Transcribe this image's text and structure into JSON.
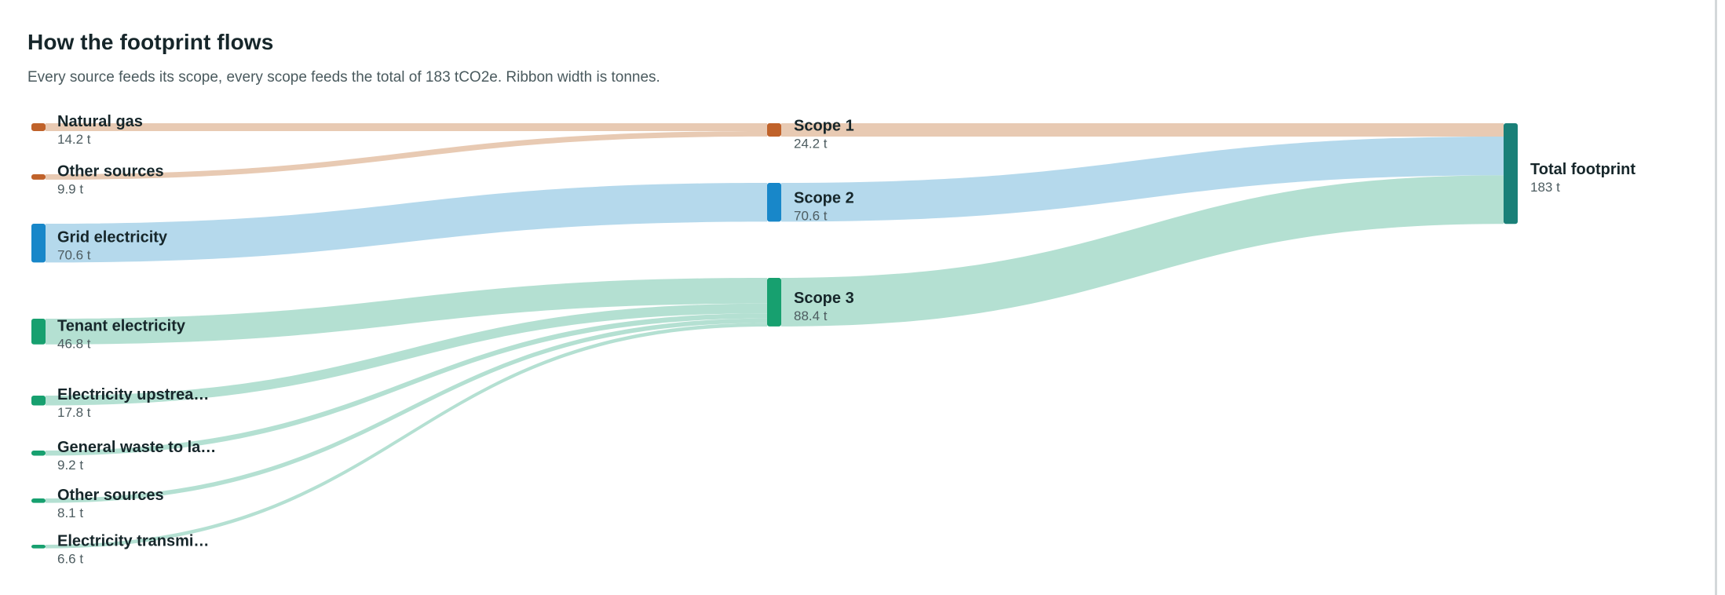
{
  "header": {
    "title": "How the footprint flows",
    "subtitle": "Every source feeds its scope, every scope feeds the total of 183 tCO2e. Ribbon width is tonnes."
  },
  "colors": {
    "scope1": "#c0622a",
    "scope1_ribbon": "#e8cab3",
    "scope2": "#1887c9",
    "scope2_ribbon": "#b5d9ec",
    "scope3": "#17a06f",
    "scope3_ribbon": "#b4e0d2",
    "total": "#1a8078"
  },
  "total": {
    "label": "Total footprint",
    "value": "183 t"
  },
  "scopes": [
    {
      "key": "s1",
      "label": "Scope 1",
      "value": "24.2 t",
      "tonnes": 24.2,
      "color": "scope1"
    },
    {
      "key": "s2",
      "label": "Scope 2",
      "value": "70.6 t",
      "tonnes": 70.6,
      "color": "scope2"
    },
    {
      "key": "s3",
      "label": "Scope 3",
      "value": "88.4 t",
      "tonnes": 88.4,
      "color": "scope3"
    }
  ],
  "sources": [
    {
      "label": "Natural gas",
      "value": "14.2 t",
      "tonnes": 14.2,
      "scope": "s1"
    },
    {
      "label": "Other sources",
      "value": "9.9 t",
      "tonnes": 9.9,
      "scope": "s1"
    },
    {
      "label": "Grid electricity",
      "value": "70.6 t",
      "tonnes": 70.6,
      "scope": "s2"
    },
    {
      "label": "Tenant electricity",
      "value": "46.8 t",
      "tonnes": 46.8,
      "scope": "s3"
    },
    {
      "label": "Electricity upstrea…",
      "value": "17.8 t",
      "tonnes": 17.8,
      "scope": "s3"
    },
    {
      "label": "General waste to la…",
      "value": "9.2 t",
      "tonnes": 9.2,
      "scope": "s3"
    },
    {
      "label": "Other sources",
      "value": "8.1 t",
      "tonnes": 8.1,
      "scope": "s3"
    },
    {
      "label": "Electricity transmi…",
      "value": "6.6 t",
      "tonnes": 6.6,
      "scope": "s3"
    }
  ]
}
